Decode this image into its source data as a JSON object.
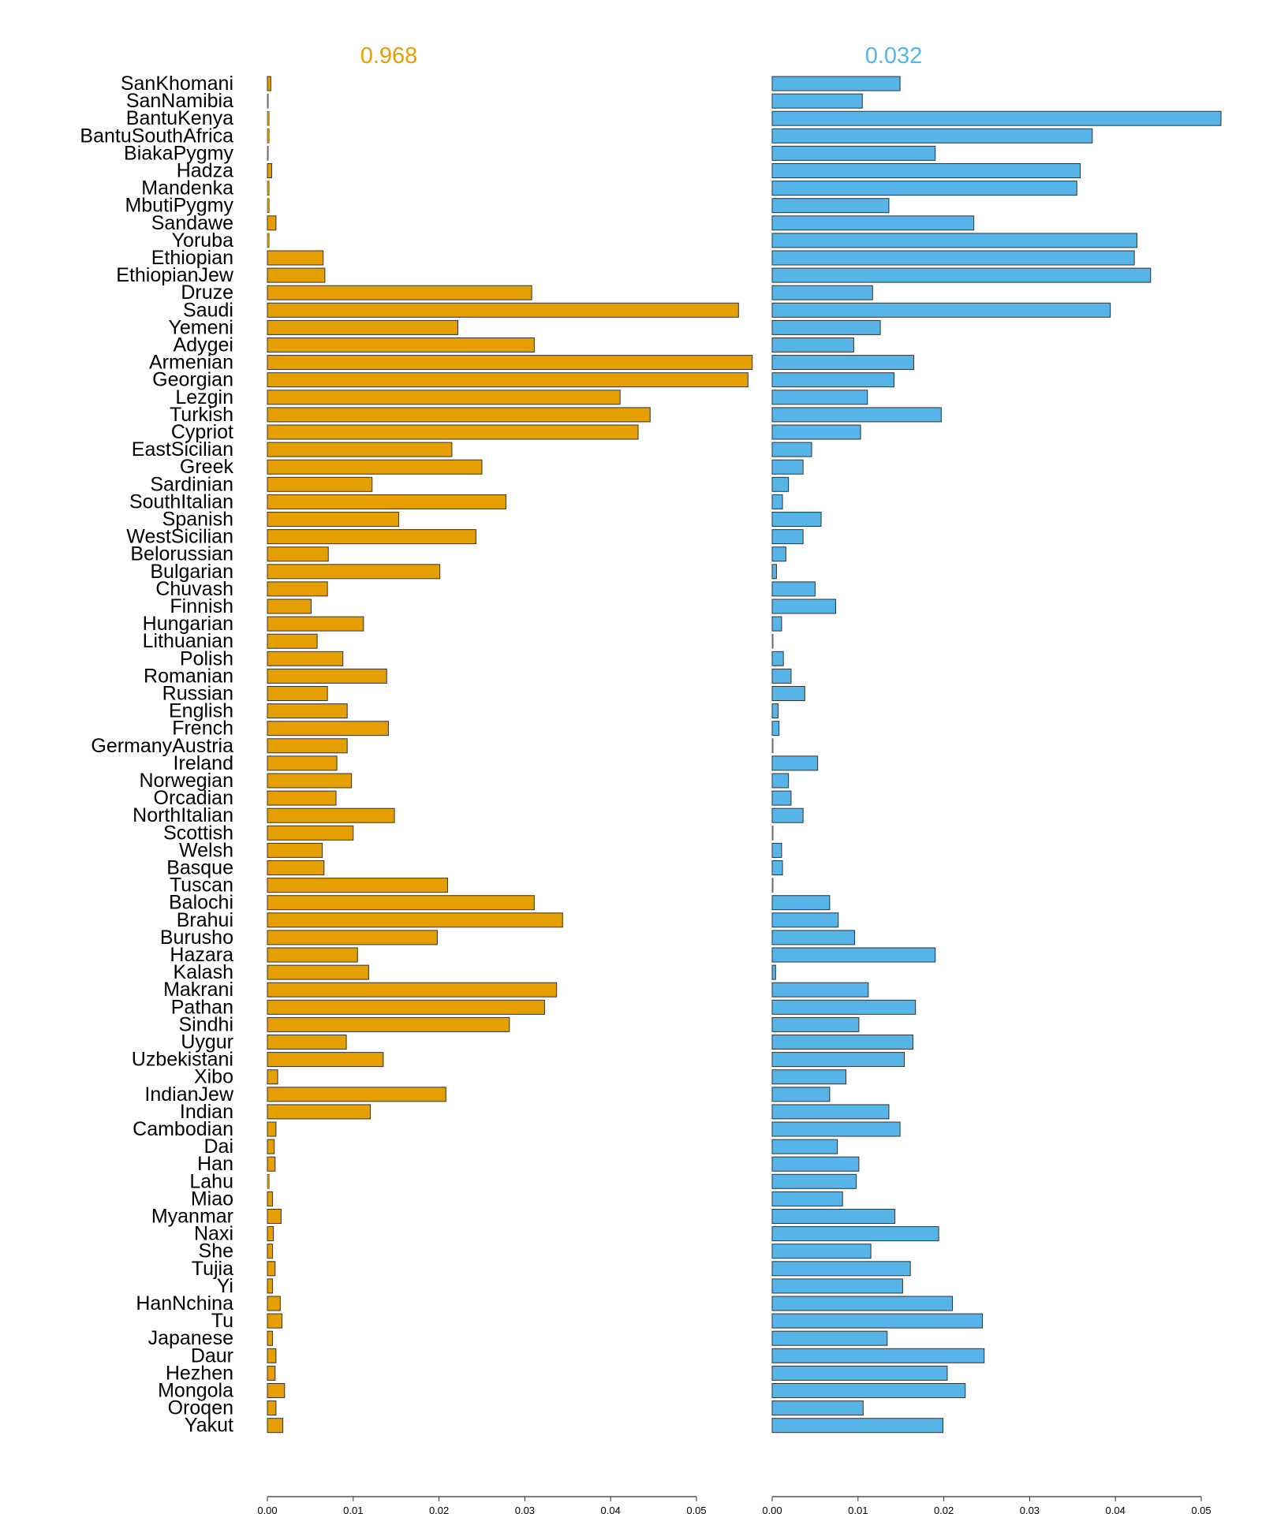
{
  "chart_data": {
    "type": "bar",
    "orientation": "horizontal",
    "categories": [
      "SanKhomani",
      "SanNamibia",
      "BantuKenya",
      "BantuSouthAfrica",
      "BiakaPygmy",
      "Hadza",
      "Mandenka",
      "MbutiPygmy",
      "Sandawe",
      "Yoruba",
      "Ethiopian",
      "EthiopianJew",
      "Druze",
      "Saudi",
      "Yemeni",
      "Adygei",
      "Armenian",
      "Georgian",
      "Lezgin",
      "Turkish",
      "Cypriot",
      "EastSicilian",
      "Greek",
      "Sardinian",
      "SouthItalian",
      "Spanish",
      "WestSicilian",
      "Belorussian",
      "Bulgarian",
      "Chuvash",
      "Finnish",
      "Hungarian",
      "Lithuanian",
      "Polish",
      "Romanian",
      "Russian",
      "English",
      "French",
      "GermanyAustria",
      "Ireland",
      "Norwegian",
      "Orcadian",
      "NorthItalian",
      "Scottish",
      "Welsh",
      "Basque",
      "Tuscan",
      "Balochi",
      "Brahui",
      "Burusho",
      "Hazara",
      "Kalash",
      "Makrani",
      "Pathan",
      "Sindhi",
      "Uygur",
      "Uzbekistani",
      "Xibo",
      "IndianJew",
      "Indian",
      "Cambodian",
      "Dai",
      "Han",
      "Lahu",
      "Miao",
      "Myanmar",
      "Naxi",
      "She",
      "Tujia",
      "Yi",
      "HanNchina",
      "Tu",
      "Japanese",
      "Daur",
      "Hezhen",
      "Mongola",
      "Oroqen",
      "Yakut"
    ],
    "series": [
      {
        "name": "0.968",
        "color": "#E69F00",
        "values": [
          0.0004,
          0.0001,
          0.0002,
          0.0002,
          0.0001,
          0.0005,
          0.0002,
          0.0002,
          0.001,
          0.0002,
          0.0065,
          0.0067,
          0.0308,
          0.0549,
          0.0222,
          0.0311,
          0.0565,
          0.056,
          0.0411,
          0.0446,
          0.0432,
          0.0215,
          0.025,
          0.0122,
          0.0278,
          0.0153,
          0.0243,
          0.0071,
          0.0201,
          0.007,
          0.0051,
          0.0112,
          0.0058,
          0.0088,
          0.0139,
          0.007,
          0.0093,
          0.0141,
          0.0093,
          0.0081,
          0.0098,
          0.008,
          0.0148,
          0.01,
          0.0064,
          0.0066,
          0.021,
          0.0311,
          0.0344,
          0.0198,
          0.0105,
          0.0118,
          0.0337,
          0.0323,
          0.0282,
          0.0092,
          0.0135,
          0.0012,
          0.0208,
          0.012,
          0.001,
          0.0008,
          0.0009,
          0.0002,
          0.0006,
          0.0016,
          0.0007,
          0.0006,
          0.0009,
          0.0006,
          0.0015,
          0.0017,
          0.0006,
          0.001,
          0.0009,
          0.002,
          0.001,
          0.0018
        ]
      },
      {
        "name": "0.032",
        "color": "#56B4E9",
        "values": [
          0.0149,
          0.0105,
          0.0523,
          0.0373,
          0.019,
          0.0359,
          0.0355,
          0.0136,
          0.0235,
          0.0425,
          0.0422,
          0.0441,
          0.0117,
          0.0394,
          0.0126,
          0.0095,
          0.0165,
          0.0142,
          0.0111,
          0.0197,
          0.0103,
          0.0046,
          0.0036,
          0.0019,
          0.0012,
          0.0057,
          0.0036,
          0.0016,
          0.0005,
          0.005,
          0.0074,
          0.0011,
          0.0001,
          0.0013,
          0.0022,
          0.0038,
          0.0007,
          0.0008,
          0.0001,
          0.0053,
          0.0019,
          0.0022,
          0.0036,
          0.0001,
          0.0011,
          0.0012,
          0.0001,
          0.0067,
          0.0077,
          0.0096,
          0.019,
          0.0004,
          0.0112,
          0.0167,
          0.0101,
          0.0164,
          0.0154,
          0.0086,
          0.0067,
          0.0136,
          0.0149,
          0.0076,
          0.0101,
          0.0098,
          0.0082,
          0.0143,
          0.0194,
          0.0115,
          0.0161,
          0.0152,
          0.021,
          0.0245,
          0.0134,
          0.0247,
          0.0204,
          0.0225,
          0.0106,
          0.0199
        ]
      }
    ],
    "panel_titles": [
      "0.968",
      "0.032"
    ],
    "title": "",
    "xlabel": "",
    "ylabel": "",
    "xlim": [
      0,
      0.05
    ],
    "xticks": [
      "0.00",
      "0.01",
      "0.02",
      "0.03",
      "0.04",
      "0.05"
    ],
    "grid": false,
    "legend": "none"
  }
}
